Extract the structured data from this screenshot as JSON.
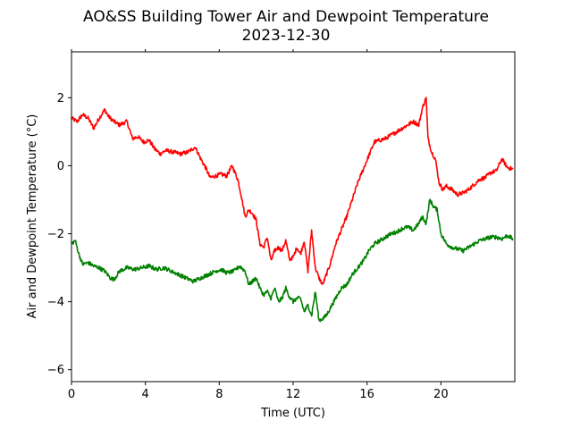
{
  "chart_data": {
    "type": "line",
    "title": "AO&SS Building Tower Air and Dewpoint Temperature",
    "subtitle": "2023-12-30",
    "xlabel": "Time (UTC)",
    "ylabel": "Air and Dewpoint Temperature (°C)",
    "xlim": [
      0,
      24
    ],
    "ylim": [
      -6.35,
      3.35
    ],
    "x_ticks": [
      0,
      4,
      8,
      12,
      16,
      20
    ],
    "y_ticks": [
      -6,
      -4,
      -2,
      0,
      2
    ],
    "y_tick_labels": [
      "−6",
      "−4",
      "−2",
      "0",
      "2"
    ],
    "grid": false,
    "series": [
      {
        "key": "air",
        "color": "#ff0000",
        "x": [
          0,
          0.3,
          0.6,
          0.9,
          1.2,
          1.5,
          1.8,
          2.0,
          2.3,
          2.6,
          3.0,
          3.3,
          3.6,
          3.9,
          4.2,
          4.5,
          4.8,
          5.1,
          5.5,
          5.9,
          6.3,
          6.7,
          7.0,
          7.3,
          7.5,
          7.8,
          8.1,
          8.4,
          8.7,
          9.0,
          9.2,
          9.4,
          9.6,
          9.8,
          10.0,
          10.2,
          10.4,
          10.6,
          10.8,
          11.0,
          11.2,
          11.4,
          11.6,
          11.8,
          12.0,
          12.2,
          12.4,
          12.6,
          12.8,
          13.0,
          13.2,
          13.4,
          13.6,
          13.8,
          14.0,
          14.3,
          14.6,
          14.9,
          15.2,
          15.5,
          15.8,
          16.1,
          16.4,
          16.7,
          17.0,
          17.3,
          17.6,
          17.9,
          18.2,
          18.5,
          18.8,
          19.0,
          19.2,
          19.3,
          19.5,
          19.7,
          19.9,
          20.1,
          20.3,
          20.6,
          20.9,
          21.2,
          21.5,
          21.8,
          22.1,
          22.4,
          22.7,
          23.0,
          23.3,
          23.6,
          23.9
        ],
        "y": [
          1.4,
          1.3,
          1.5,
          1.4,
          1.1,
          1.4,
          1.65,
          1.45,
          1.3,
          1.2,
          1.3,
          0.8,
          0.85,
          0.7,
          0.75,
          0.5,
          0.35,
          0.45,
          0.4,
          0.35,
          0.4,
          0.55,
          0.2,
          -0.1,
          -0.35,
          -0.3,
          -0.25,
          -0.3,
          0.0,
          -0.4,
          -0.9,
          -1.5,
          -1.3,
          -1.4,
          -1.6,
          -2.3,
          -2.4,
          -2.1,
          -2.8,
          -2.5,
          -2.4,
          -2.5,
          -2.2,
          -2.75,
          -2.7,
          -2.4,
          -2.6,
          -2.2,
          -3.1,
          -1.9,
          -3.0,
          -3.3,
          -3.5,
          -3.2,
          -2.9,
          -2.3,
          -1.9,
          -1.5,
          -1.0,
          -0.5,
          -0.1,
          0.3,
          0.7,
          0.75,
          0.8,
          0.9,
          1.0,
          1.1,
          1.2,
          1.3,
          1.2,
          1.7,
          2.0,
          0.8,
          0.4,
          0.2,
          -0.5,
          -0.7,
          -0.6,
          -0.7,
          -0.85,
          -0.8,
          -0.7,
          -0.55,
          -0.4,
          -0.35,
          -0.2,
          -0.15,
          0.2,
          -0.05,
          -0.1
        ]
      },
      {
        "key": "dewpoint",
        "color": "#008000",
        "x": [
          0,
          0.2,
          0.4,
          0.6,
          0.9,
          1.2,
          1.5,
          1.8,
          2.1,
          2.3,
          2.6,
          3.0,
          3.4,
          3.8,
          4.2,
          4.6,
          5.0,
          5.4,
          5.8,
          6.2,
          6.6,
          7.0,
          7.4,
          7.8,
          8.1,
          8.4,
          8.8,
          9.1,
          9.4,
          9.6,
          9.8,
          10.0,
          10.2,
          10.4,
          10.6,
          10.8,
          11.0,
          11.2,
          11.4,
          11.6,
          11.8,
          12.0,
          12.2,
          12.4,
          12.6,
          12.8,
          13.0,
          13.2,
          13.4,
          13.6,
          13.8,
          14.0,
          14.3,
          14.6,
          14.9,
          15.2,
          15.5,
          15.8,
          16.1,
          16.4,
          16.7,
          17.0,
          17.3,
          17.6,
          17.9,
          18.2,
          18.5,
          18.8,
          19.0,
          19.2,
          19.4,
          19.6,
          19.8,
          20.0,
          20.3,
          20.6,
          20.9,
          21.2,
          21.5,
          21.8,
          22.1,
          22.4,
          22.7,
          23.0,
          23.3,
          23.6,
          23.9
        ],
        "y": [
          -2.3,
          -2.2,
          -2.6,
          -2.9,
          -2.85,
          -2.95,
          -3.0,
          -3.1,
          -3.3,
          -3.35,
          -3.1,
          -3.0,
          -3.05,
          -3.0,
          -2.95,
          -3.05,
          -3.0,
          -3.1,
          -3.2,
          -3.3,
          -3.4,
          -3.3,
          -3.2,
          -3.1,
          -3.05,
          -3.15,
          -3.1,
          -2.95,
          -3.1,
          -3.5,
          -3.4,
          -3.3,
          -3.6,
          -3.8,
          -3.7,
          -3.9,
          -3.6,
          -4.0,
          -3.9,
          -3.6,
          -3.85,
          -4.0,
          -3.9,
          -3.9,
          -4.3,
          -4.1,
          -4.4,
          -3.7,
          -4.55,
          -4.5,
          -4.4,
          -4.2,
          -3.9,
          -3.6,
          -3.5,
          -3.2,
          -3.0,
          -2.8,
          -2.5,
          -2.3,
          -2.2,
          -2.1,
          -2.0,
          -1.95,
          -1.85,
          -1.8,
          -1.9,
          -1.7,
          -1.5,
          -1.7,
          -1.0,
          -1.2,
          -1.3,
          -2.0,
          -2.3,
          -2.4,
          -2.45,
          -2.5,
          -2.4,
          -2.3,
          -2.2,
          -2.15,
          -2.1,
          -2.1,
          -2.15,
          -2.05,
          -2.15
        ]
      }
    ]
  }
}
